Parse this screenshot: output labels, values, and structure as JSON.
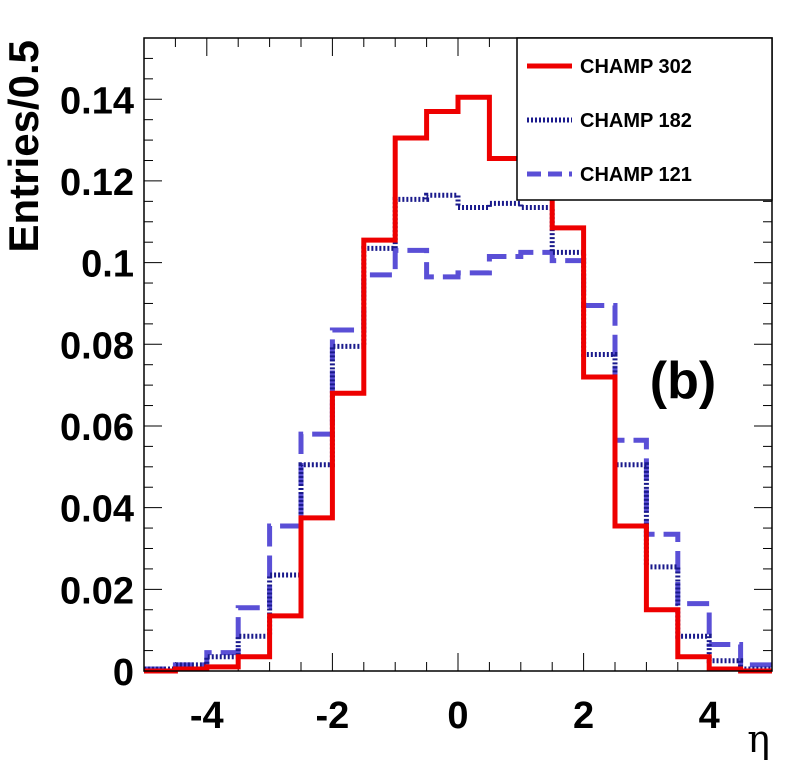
{
  "chart_data": {
    "type": "histogram-step",
    "title": "",
    "xlabel": "η",
    "ylabel": "Entries/0.5",
    "annotation": "(b)",
    "xlim": [
      -5,
      5
    ],
    "ylim": [
      0,
      0.155
    ],
    "bin_width": 0.5,
    "bin_edges": [
      -5,
      -4.5,
      -4,
      -3.5,
      -3,
      -2.5,
      -2,
      -1.5,
      -1,
      -0.5,
      0,
      0.5,
      1,
      1.5,
      2,
      2.5,
      3,
      3.5,
      4,
      4.5,
      5
    ],
    "x_ticks": [
      {
        "value": -4,
        "label": "-4"
      },
      {
        "value": -2,
        "label": "-2"
      },
      {
        "value": 0,
        "label": "0"
      },
      {
        "value": 2,
        "label": "2"
      },
      {
        "value": 4,
        "label": "4"
      }
    ],
    "y_ticks": [
      {
        "value": 0,
        "label": "0"
      },
      {
        "value": 0.02,
        "label": "0.02"
      },
      {
        "value": 0.04,
        "label": "0.04"
      },
      {
        "value": 0.06,
        "label": "0.06"
      },
      {
        "value": 0.08,
        "label": "0.08"
      },
      {
        "value": 0.1,
        "label": "0.1"
      },
      {
        "value": 0.12,
        "label": "0.12"
      },
      {
        "value": 0.14,
        "label": "0.14"
      }
    ],
    "legend_position": "top-right",
    "series": [
      {
        "name": "CHAMP 302",
        "color": "#ee0000",
        "style": "solid",
        "values": [
          0.0,
          0.0005,
          0.001,
          0.0035,
          0.0135,
          0.0375,
          0.068,
          0.1055,
          0.1305,
          0.137,
          0.1405,
          0.1255,
          0.1245,
          0.1085,
          0.072,
          0.0355,
          0.015,
          0.0035,
          0.0005,
          0.0
        ]
      },
      {
        "name": "CHAMP 182",
        "color": "#1a1a8c",
        "style": "dotted",
        "values": [
          0.0005,
          0.0015,
          0.0035,
          0.0085,
          0.0235,
          0.0505,
          0.0795,
          0.1035,
          0.1155,
          0.1165,
          0.1135,
          0.1145,
          0.1135,
          0.1025,
          0.0775,
          0.0505,
          0.0255,
          0.0085,
          0.0025,
          0.0005
        ]
      },
      {
        "name": "CHAMP 121",
        "color": "#5a4fd6",
        "style": "dashed",
        "values": [
          0.0005,
          0.0015,
          0.0045,
          0.0155,
          0.0355,
          0.058,
          0.0835,
          0.097,
          0.103,
          0.0965,
          0.0975,
          0.1015,
          0.1025,
          0.1005,
          0.0895,
          0.0565,
          0.0335,
          0.0165,
          0.0065,
          0.0015
        ]
      }
    ]
  }
}
